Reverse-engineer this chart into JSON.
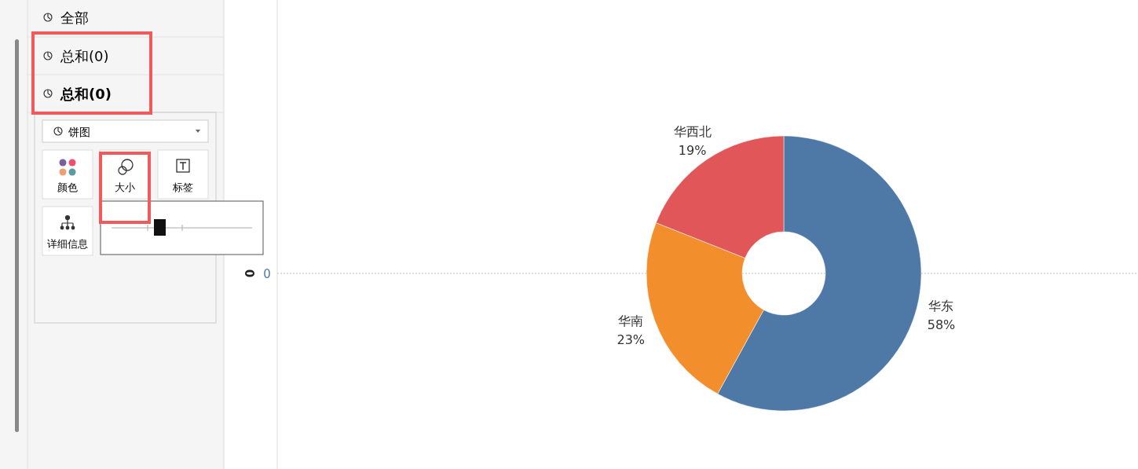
{
  "chart_data": {
    "type": "donut",
    "categories": [
      "华东",
      "华南",
      "华西北"
    ],
    "values": [
      58,
      23,
      19
    ],
    "value_labels": [
      "58%",
      "23%",
      "19%"
    ],
    "colors": [
      "#4e79a7",
      "#f28e2b",
      "#e15759"
    ],
    "ylabel": "0",
    "annotations": [
      "全部",
      "总和(0)",
      "总和(0)",
      "饼图",
      "颜色",
      "大小",
      "标签",
      "详细信息",
      "0"
    ]
  }
}
